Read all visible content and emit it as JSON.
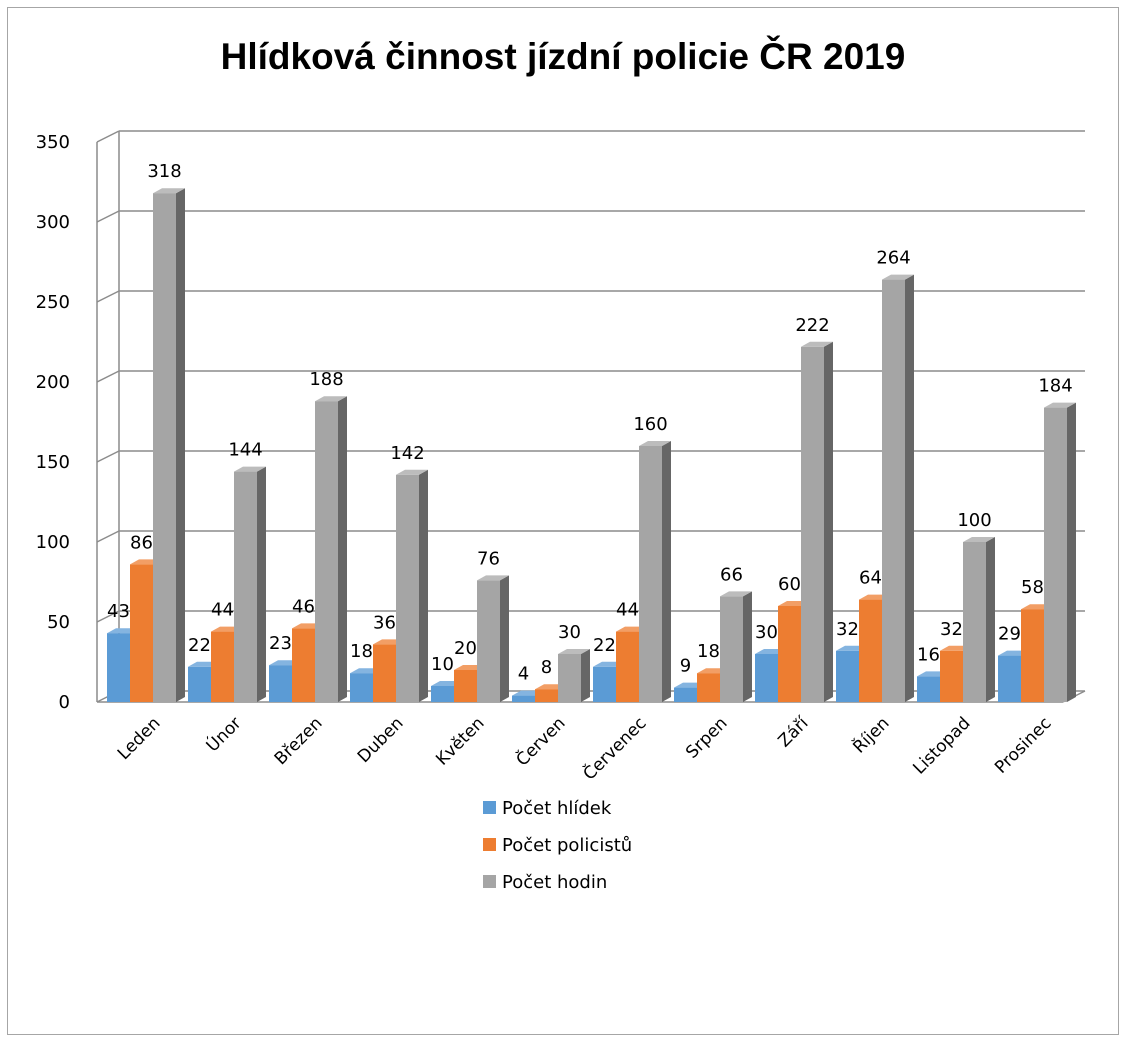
{
  "chart_data": {
    "type": "bar",
    "title": "Hlídková činnost jízdní policie ČR 2019",
    "xlabel": "",
    "ylabel": "",
    "ylim": [
      0,
      350
    ],
    "yticks": [
      "0",
      "50",
      "100",
      "150",
      "200",
      "250",
      "300",
      "350"
    ],
    "grid": true,
    "legend_position": "bottom",
    "categories": [
      "Leden",
      "Únor",
      "Březen",
      "Duben",
      "Květen",
      "Červen",
      "Červenec",
      "Srpen",
      "Září",
      "Říjen",
      "Listopad",
      "Prosinec"
    ],
    "series": [
      {
        "name": "Počet hlídek",
        "color": "#5b9bd5",
        "values": [
          43,
          22,
          23,
          18,
          10,
          4,
          22,
          9,
          30,
          32,
          16,
          29
        ]
      },
      {
        "name": "Počet policistů",
        "color": "#ed7d31",
        "values": [
          86,
          44,
          46,
          36,
          20,
          8,
          44,
          18,
          60,
          64,
          32,
          58
        ]
      },
      {
        "name": "Počet hodin",
        "color": "#a5a5a5",
        "values": [
          318,
          144,
          188,
          142,
          76,
          30,
          160,
          66,
          222,
          264,
          100,
          184
        ]
      }
    ]
  }
}
